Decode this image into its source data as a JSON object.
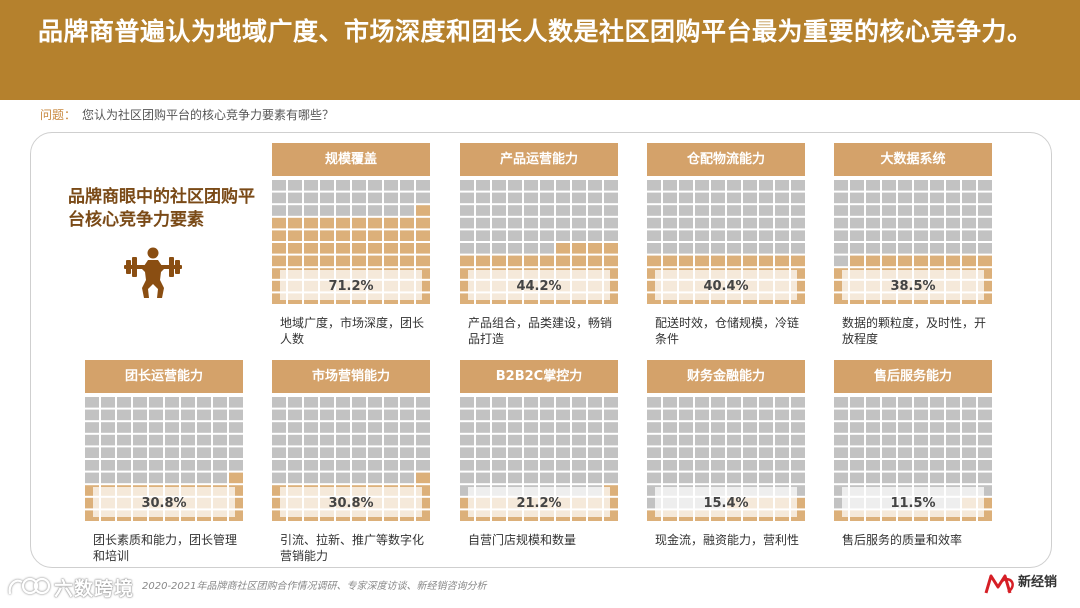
{
  "header": {
    "title": "品牌商普遍认为地域广度、市场深度和团长人数是社区团购平台最为重要的核心竞争力。"
  },
  "question": {
    "label": "问题：",
    "text": "您认为社区团购平台的核心竞争力要素有哪些？"
  },
  "intro": {
    "title": "品牌商眼中的社区团购平台核心竞争力要素",
    "icon": "weightlifter-icon"
  },
  "colors": {
    "header": "#b5812d",
    "filled": "#dcb07a",
    "empty": "#c2c2c2",
    "title_box": "#d4a26a"
  },
  "chart_data": {
    "type": "waffle",
    "grid": [
      10,
      10
    ],
    "categories": [
      "规模覆盖",
      "产品运营能力",
      "仓配物流能力",
      "大数据系统",
      "团长运营能力",
      "市场营销能力",
      "B2B2C掌控力",
      "财务金融能力",
      "售后服务能力"
    ],
    "values": [
      71.2,
      44.2,
      40.4,
      38.5,
      30.8,
      30.8,
      21.2,
      15.4,
      11.5
    ],
    "value_labels": [
      "71.2%",
      "44.2%",
      "40.4%",
      "38.5%",
      "30.8%",
      "30.8%",
      "21.2%",
      "15.4%",
      "11.5%"
    ],
    "descriptions": [
      "地域广度，市场深度，团长人数",
      "产品组合，品类建设，畅销品打造",
      "配送时效，仓储规模，冷链条件",
      "数据的颗粒度，及时性，开放程度",
      "团长素质和能力，团长管理和培训",
      "引流、拉新、推广等数字化营销能力",
      "自营门店规模和数量",
      "现金流，融资能力，营利性",
      "售后服务的质量和效率"
    ]
  },
  "footer": {
    "source": "2020-2021年品牌商社区团购合作情况调研、专家深度访谈、新经销咨询分析",
    "watermark": "六数跨境",
    "logo_text": "新经销"
  }
}
